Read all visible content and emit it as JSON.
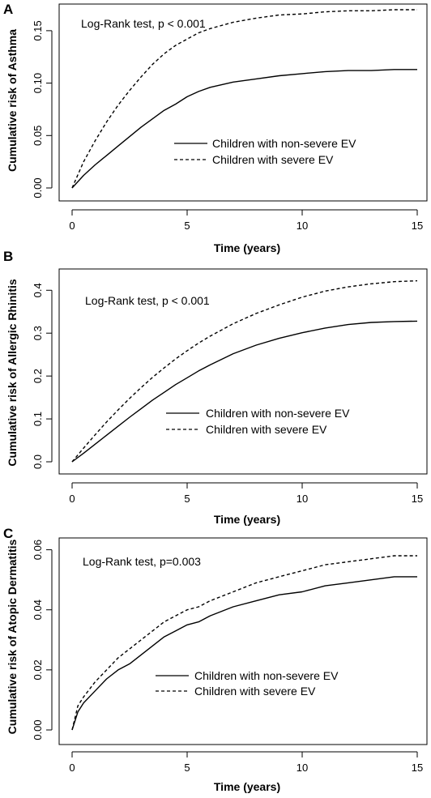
{
  "chart_data": [
    {
      "type": "line",
      "panel": "A",
      "title": "",
      "annotation": "Log-Rank test, p < 0.001",
      "xlabel": "Time (years)",
      "ylabel": "Cumulative risk of Asthma",
      "xlim": [
        0,
        15
      ],
      "ylim": [
        0,
        0.17
      ],
      "xticks": [
        0,
        5,
        10,
        15
      ],
      "yticks": [
        0.0,
        0.05,
        0.1,
        0.15
      ],
      "ytick_labels": [
        "0.00",
        "0.05",
        "0.10",
        "0.15"
      ],
      "legend": "center-right",
      "series": [
        {
          "name": "Children with non-severe EV",
          "style": "solid",
          "x": [
            0,
            0.5,
            1,
            1.5,
            2,
            2.5,
            3,
            3.5,
            4,
            4.5,
            5,
            5.5,
            6,
            7,
            8,
            9,
            10,
            11,
            12,
            13,
            14,
            15
          ],
          "y": [
            0,
            0.012,
            0.022,
            0.031,
            0.04,
            0.049,
            0.058,
            0.066,
            0.074,
            0.08,
            0.087,
            0.092,
            0.096,
            0.101,
            0.104,
            0.107,
            0.109,
            0.111,
            0.112,
            0.112,
            0.113,
            0.113
          ]
        },
        {
          "name": "Children with severe EV",
          "style": "dashed",
          "x": [
            0,
            0.5,
            1,
            1.5,
            2,
            2.5,
            3,
            3.5,
            4,
            4.5,
            5,
            5.5,
            6,
            7,
            8,
            9,
            10,
            11,
            12,
            13,
            14,
            15
          ],
          "y": [
            0,
            0.025,
            0.045,
            0.063,
            0.079,
            0.093,
            0.106,
            0.118,
            0.128,
            0.136,
            0.142,
            0.148,
            0.152,
            0.158,
            0.162,
            0.165,
            0.166,
            0.168,
            0.169,
            0.169,
            0.17,
            0.17
          ]
        }
      ]
    },
    {
      "type": "line",
      "panel": "B",
      "title": "",
      "annotation": "Log-Rank test, p < 0.001",
      "xlabel": "Time (years)",
      "ylabel": "Cumulative risk of Allergic Rhinitis",
      "xlim": [
        0,
        15
      ],
      "ylim": [
        0,
        0.42
      ],
      "xticks": [
        0,
        5,
        10,
        15
      ],
      "yticks": [
        0.0,
        0.1,
        0.2,
        0.3,
        0.4
      ],
      "ytick_labels": [
        "0.0",
        "0.1",
        "0.2",
        "0.3",
        "0.4"
      ],
      "legend": "center-right",
      "series": [
        {
          "name": "Children with non-severe EV",
          "style": "solid",
          "x": [
            0,
            0.5,
            1,
            1.5,
            2,
            2.5,
            3,
            3.5,
            4,
            4.5,
            5,
            5.5,
            6,
            7,
            8,
            9,
            10,
            11,
            12,
            13,
            14,
            15
          ],
          "y": [
            0,
            0.02,
            0.041,
            0.062,
            0.083,
            0.104,
            0.124,
            0.144,
            0.162,
            0.18,
            0.196,
            0.212,
            0.226,
            0.252,
            0.272,
            0.288,
            0.301,
            0.312,
            0.32,
            0.325,
            0.327,
            0.328
          ]
        },
        {
          "name": "Children with severe EV",
          "style": "dashed",
          "x": [
            0,
            0.5,
            1,
            1.5,
            2,
            2.5,
            3,
            3.5,
            4,
            4.5,
            5,
            5.5,
            6,
            7,
            8,
            9,
            10,
            11,
            12,
            13,
            14,
            15
          ],
          "y": [
            0,
            0.032,
            0.063,
            0.093,
            0.121,
            0.148,
            0.173,
            0.197,
            0.219,
            0.24,
            0.259,
            0.277,
            0.293,
            0.322,
            0.346,
            0.366,
            0.384,
            0.398,
            0.408,
            0.415,
            0.42,
            0.422
          ]
        }
      ]
    },
    {
      "type": "line",
      "panel": "C",
      "title": "",
      "annotation": "Log-Rank test, p=0.003",
      "xlabel": "Time (years)",
      "ylabel": "Cumulative risk of Atopic Dermatitis",
      "xlim": [
        0,
        15
      ],
      "ylim": [
        0,
        0.058
      ],
      "xticks": [
        0,
        5,
        10,
        15
      ],
      "yticks": [
        0.0,
        0.02,
        0.04,
        0.06
      ],
      "ytick_labels": [
        "0.00",
        "0.02",
        "0.04",
        "0.06"
      ],
      "legend": "center-right",
      "series": [
        {
          "name": "Children with non-severe EV",
          "style": "solid",
          "x": [
            0,
            0.25,
            0.5,
            1,
            1.5,
            2,
            2.5,
            3,
            3.5,
            4,
            4.5,
            5,
            5.5,
            6,
            7,
            8,
            9,
            10,
            11,
            12,
            13,
            14,
            15
          ],
          "y": [
            0,
            0.006,
            0.009,
            0.013,
            0.017,
            0.02,
            0.022,
            0.025,
            0.028,
            0.031,
            0.033,
            0.035,
            0.036,
            0.038,
            0.041,
            0.043,
            0.045,
            0.046,
            0.048,
            0.049,
            0.05,
            0.051,
            0.051
          ]
        },
        {
          "name": "Children with severe EV",
          "style": "dashed",
          "x": [
            0,
            0.25,
            0.5,
            1,
            1.5,
            2,
            2.5,
            3,
            3.5,
            4,
            4.5,
            5,
            5.5,
            6,
            7,
            8,
            9,
            10,
            11,
            12,
            13,
            14,
            15
          ],
          "y": [
            0,
            0.008,
            0.011,
            0.016,
            0.02,
            0.024,
            0.027,
            0.03,
            0.033,
            0.036,
            0.038,
            0.04,
            0.041,
            0.043,
            0.046,
            0.049,
            0.051,
            0.053,
            0.055,
            0.056,
            0.057,
            0.058,
            0.058
          ]
        }
      ]
    }
  ]
}
